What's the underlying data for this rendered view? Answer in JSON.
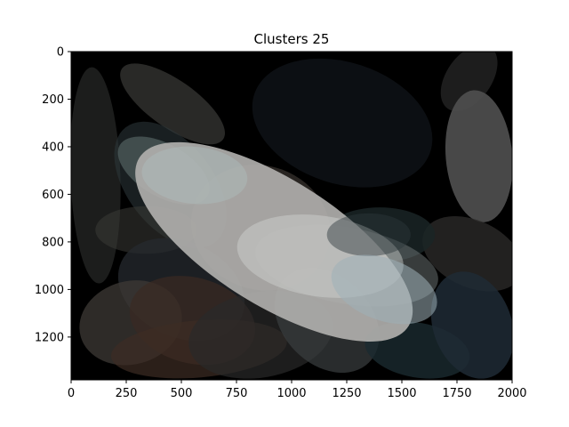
{
  "chart_data": {
    "type": "scatter",
    "title": "Clusters 25",
    "xlabel": "",
    "ylabel": "",
    "xlim": [
      0,
      2000
    ],
    "ylim": [
      1380,
      0
    ],
    "y_axis_inverted": true,
    "grid": false,
    "background_color": "#000000",
    "x_ticks": [
      0,
      250,
      500,
      750,
      1000,
      1250,
      1500,
      1750,
      2000
    ],
    "y_ticks": [
      0,
      200,
      400,
      600,
      800,
      1000,
      1200
    ],
    "clusters": [
      {
        "cx": 1230,
        "cy": 300,
        "rx": 420,
        "ry": 255,
        "angle_deg": 18,
        "color": "#0d1014",
        "opacity": 0.95
      },
      {
        "cx": 1805,
        "cy": 110,
        "rx": 170,
        "ry": 95,
        "angle_deg": -55,
        "color": "#2a2a2a",
        "opacity": 0.7
      },
      {
        "cx": 1850,
        "cy": 440,
        "rx": 300,
        "ry": 140,
        "angle_deg": 85,
        "color": "#505050",
        "opacity": 0.9
      },
      {
        "cx": 460,
        "cy": 220,
        "rx": 280,
        "ry": 100,
        "angle_deg": 35,
        "color": "#3a3a38",
        "opacity": 0.7
      },
      {
        "cx": 110,
        "cy": 520,
        "rx": 490,
        "ry": 105,
        "angle_deg": 88,
        "color": "#2b2d2b",
        "opacity": 0.65
      },
      {
        "cx": 450,
        "cy": 560,
        "rx": 330,
        "ry": 180,
        "angle_deg": 52,
        "color": "#2e393c",
        "opacity": 0.55
      },
      {
        "cx": 420,
        "cy": 500,
        "rx": 230,
        "ry": 110,
        "angle_deg": 30,
        "color": "#5b6d6a",
        "opacity": 0.6
      },
      {
        "cx": 340,
        "cy": 750,
        "rx": 230,
        "ry": 100,
        "angle_deg": 0,
        "color": "#3b3b37",
        "opacity": 0.55
      },
      {
        "cx": 500,
        "cy": 1000,
        "rx": 300,
        "ry": 200,
        "angle_deg": 25,
        "color": "#252a2f",
        "opacity": 0.75
      },
      {
        "cx": 270,
        "cy": 1140,
        "rx": 235,
        "ry": 175,
        "angle_deg": -15,
        "color": "#3e3a36",
        "opacity": 0.75
      },
      {
        "cx": 550,
        "cy": 1130,
        "rx": 290,
        "ry": 180,
        "angle_deg": 15,
        "color": "#3b2a22",
        "opacity": 0.7
      },
      {
        "cx": 580,
        "cy": 1250,
        "rx": 400,
        "ry": 120,
        "angle_deg": -5,
        "color": "#3d2c23",
        "opacity": 0.7
      },
      {
        "cx": 860,
        "cy": 1190,
        "rx": 330,
        "ry": 180,
        "angle_deg": -10,
        "color": "#2a2929",
        "opacity": 0.7
      },
      {
        "cx": 1160,
        "cy": 1130,
        "rx": 270,
        "ry": 185,
        "angle_deg": 45,
        "color": "#3a3e40",
        "opacity": 0.7
      },
      {
        "cx": 1570,
        "cy": 1255,
        "rx": 240,
        "ry": 115,
        "angle_deg": 10,
        "color": "#1a2a30",
        "opacity": 0.8
      },
      {
        "cx": 1820,
        "cy": 850,
        "rx": 240,
        "ry": 140,
        "angle_deg": 25,
        "color": "#2a2928",
        "opacity": 0.8
      },
      {
        "cx": 1820,
        "cy": 1150,
        "rx": 250,
        "ry": 165,
        "angle_deg": 70,
        "color": "#1e2a35",
        "opacity": 0.85
      },
      {
        "cx": 1400,
        "cy": 770,
        "rx": 250,
        "ry": 115,
        "angle_deg": 0,
        "color": "#1a2426",
        "opacity": 0.85
      },
      {
        "cx": 1250,
        "cy": 900,
        "rx": 420,
        "ry": 160,
        "angle_deg": 10,
        "color": "#6f7878",
        "opacity": 0.5
      },
      {
        "cx": 860,
        "cy": 740,
        "rx": 320,
        "ry": 260,
        "angle_deg": 20,
        "color": "#5a534c",
        "opacity": 0.45
      },
      {
        "cx": 920,
        "cy": 800,
        "rx": 720,
        "ry": 265,
        "angle_deg": 32,
        "color": "#b2b1af",
        "opacity": 0.9
      },
      {
        "cx": 1130,
        "cy": 860,
        "rx": 380,
        "ry": 170,
        "angle_deg": 8,
        "color": "#d2d5d2",
        "opacity": 0.45
      },
      {
        "cx": 1350,
        "cy": 770,
        "rx": 190,
        "ry": 90,
        "angle_deg": 0,
        "color": "#2c383c",
        "opacity": 0.45
      },
      {
        "cx": 1420,
        "cy": 1000,
        "rx": 250,
        "ry": 130,
        "angle_deg": 20,
        "color": "#9fb0b8",
        "opacity": 0.55
      },
      {
        "cx": 560,
        "cy": 520,
        "rx": 240,
        "ry": 120,
        "angle_deg": 5,
        "color": "#aec0c0",
        "opacity": 0.4
      }
    ]
  }
}
